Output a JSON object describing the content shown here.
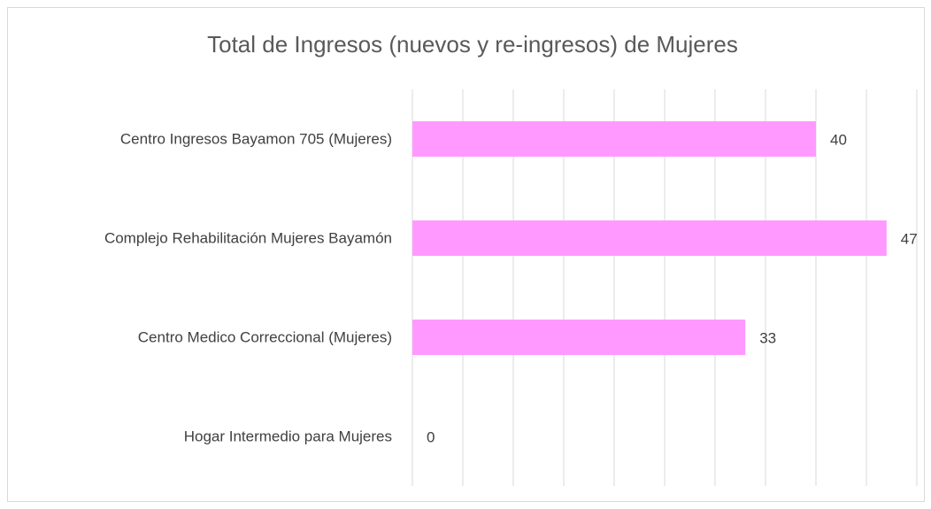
{
  "chart_data": {
    "type": "bar",
    "orientation": "horizontal",
    "title": "Total de Ingresos (nuevos y re-ingresos) de Mujeres",
    "categories": [
      "Centro Ingresos Bayamon 705 (Mujeres)",
      "Complejo Rehabilitación Mujeres Bayamón",
      "Centro Medico Correccional (Mujeres)",
      "Hogar Intermedio para Mujeres"
    ],
    "values": [
      40,
      47,
      33,
      0
    ],
    "color": "#ff99ff",
    "xlim": [
      0,
      50
    ],
    "xticks": [
      0,
      5,
      10,
      15,
      20,
      25,
      30,
      35,
      40,
      45,
      50
    ],
    "grid": true
  }
}
